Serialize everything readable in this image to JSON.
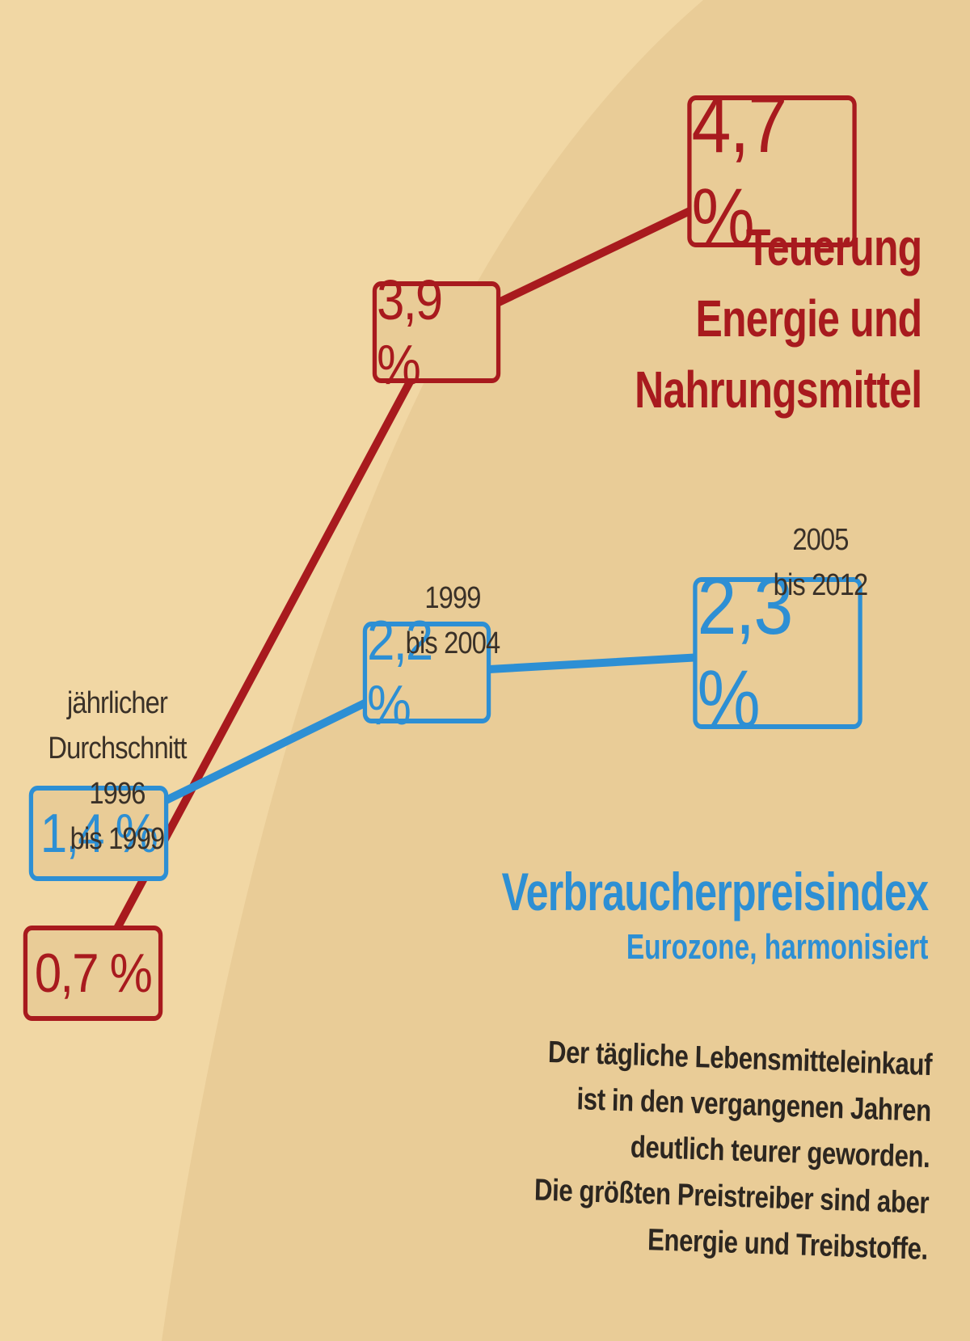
{
  "chart_data": {
    "type": "line",
    "x": [
      "1996 bis 1999",
      "1999 bis 2004",
      "2005 bis 2012"
    ],
    "series": [
      {
        "name": "Teuerung Energie und Nahrungsmittel",
        "values": [
          0.7,
          3.9,
          4.7
        ],
        "labels": [
          "0,7 %",
          "3,9 %",
          "4,7 %"
        ],
        "color": "#a81a1e"
      },
      {
        "name": "Verbraucherpreisindex",
        "values": [
          1.4,
          2.2,
          2.3
        ],
        "labels": [
          "1,4 %",
          "2,2 %",
          "2,3 %"
        ],
        "color": "#2d8fd4"
      }
    ],
    "period_labels": [
      [
        "jährlicher",
        "Durchschnitt",
        "1996",
        "bis 1999"
      ],
      [
        "1999",
        "bis 2004"
      ],
      [
        "2005",
        "bis 2012"
      ]
    ]
  },
  "legend": {
    "red_title": [
      "Teuerung",
      "Energie und",
      "Nahrungsmittel"
    ],
    "blue_title": "Verbraucherpreisindex",
    "blue_subtitle": "Eurozone, harmonisiert"
  },
  "note": [
    "Der tägliche Lebensmitteleinkauf",
    "ist in den vergangenen Jahren",
    "deutlich teurer geworden.",
    "Die größten Preistreiber sind aber",
    "Energie und Treibstoffe."
  ]
}
